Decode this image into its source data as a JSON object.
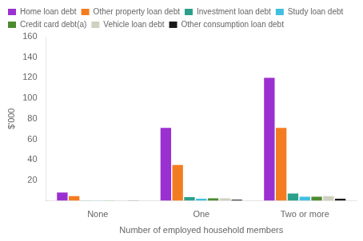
{
  "chart_data": {
    "type": "bar",
    "categories": [
      "None",
      "One",
      "Two or more"
    ],
    "series": [
      {
        "name": "Home loan debt",
        "color": "#9B30D0",
        "values": [
          8,
          71,
          120
        ]
      },
      {
        "name": "Other property loan debt",
        "color": "#F47C20",
        "values": [
          4.5,
          35,
          71
        ]
      },
      {
        "name": "Investment loan debt",
        "color": "#2BA08B",
        "values": [
          0.3,
          3.5,
          7
        ]
      },
      {
        "name": "Study loan debt",
        "color": "#40BFDF",
        "values": [
          0.3,
          2,
          4
        ]
      },
      {
        "name": "Credit card debt(a)",
        "color": "#4D8A2E",
        "values": [
          0.3,
          2.5,
          4
        ]
      },
      {
        "name": "Vehicle loan debt",
        "color": "#D0D0C0",
        "values": [
          0.3,
          2.5,
          4.5
        ]
      },
      {
        "name": "Other consumption loan debt",
        "color": "#1A1A1A",
        "values": [
          0.3,
          1,
          2
        ]
      }
    ],
    "xlabel": "Number of employed household members",
    "ylabel": "$'000",
    "ylim": [
      0,
      160
    ],
    "yticks": [
      20,
      40,
      60,
      80,
      100,
      120,
      140,
      160
    ],
    "grid": false,
    "legend": "upper left"
  }
}
